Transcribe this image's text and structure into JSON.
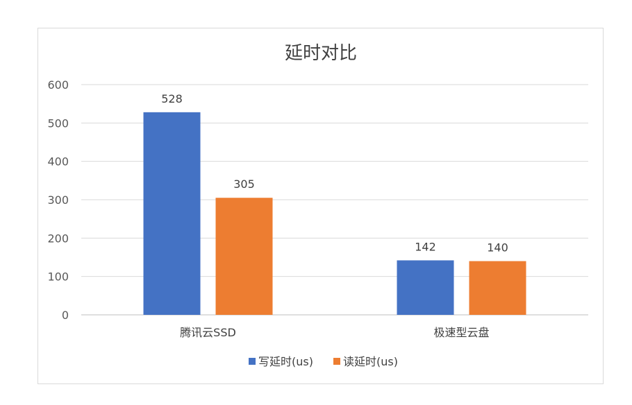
{
  "chart_data": {
    "type": "bar",
    "title": "延时对比",
    "categories": [
      "腾讯云SSD",
      "极速型云盘"
    ],
    "series": [
      {
        "name": "写延时(us)",
        "values": [
          528,
          142
        ],
        "color": "#4472C4"
      },
      {
        "name": "读延时(us)",
        "values": [
          305,
          140
        ],
        "color": "#ED7D31"
      }
    ],
    "ylim": [
      0,
      600
    ],
    "yticks": [
      0,
      100,
      200,
      300,
      400,
      500,
      600
    ],
    "grid": true,
    "legend_position": "bottom",
    "xlabel": "",
    "ylabel": ""
  },
  "colors": {
    "grid": "#d9d9d9",
    "axis": "#bfbfbf",
    "border": "#d9d9d9"
  }
}
